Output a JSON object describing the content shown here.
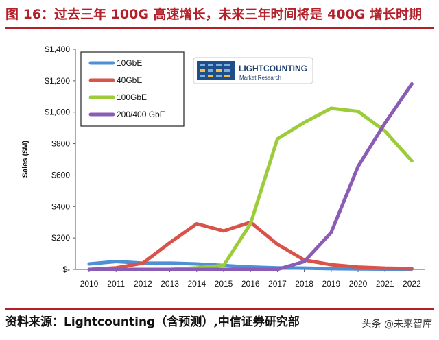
{
  "title": "图 16：过去三年 100G 高速增长，未来三年时间将是 400G 增长时期",
  "source": "资料来源：Lightcounting（含预测）,中信证券研究部",
  "watermark": "头条 @未来智库",
  "logo": {
    "name": "LIGHTCOUNTING",
    "subtitle": "Market Research"
  },
  "colors": {
    "accent": "#b3202a",
    "10GbE": "#4f8fd6",
    "40GbE": "#d9534a",
    "100GbE": "#9ccc3a",
    "200/400 GbE": "#8a5cb5"
  },
  "chart_data": {
    "type": "line",
    "ylabel": "Sales ($M)",
    "ylim": [
      0,
      1400
    ],
    "yticks": [
      0,
      200,
      400,
      600,
      800,
      1000,
      1200,
      1400
    ],
    "ytick_labels": [
      "$-",
      "$200",
      "$400",
      "$600",
      "$800",
      "$1,000",
      "$1,200",
      "$1,400"
    ],
    "categories": [
      "2010",
      "2011",
      "2012",
      "2013",
      "2014",
      "2015",
      "2016",
      "2017",
      "2018",
      "2019",
      "2020",
      "2021",
      "2022"
    ],
    "legend_position": "top-left",
    "grid": false,
    "series": [
      {
        "name": "10GbE",
        "color": "#4f8fd6",
        "values": [
          35,
          50,
          40,
          40,
          35,
          25,
          15,
          10,
          8,
          5,
          3,
          2,
          2
        ]
      },
      {
        "name": "40GbE",
        "color": "#d9534a",
        "values": [
          0,
          10,
          40,
          170,
          290,
          245,
          300,
          160,
          60,
          30,
          15,
          8,
          5
        ]
      },
      {
        "name": "100GbE",
        "color": "#9ccc3a",
        "values": [
          0,
          0,
          0,
          0,
          10,
          25,
          290,
          830,
          935,
          1025,
          1005,
          880,
          690
        ]
      },
      {
        "name": "200/400 GbE",
        "color": "#8a5cb5",
        "values": [
          0,
          0,
          0,
          0,
          0,
          0,
          0,
          0,
          50,
          235,
          655,
          930,
          1180
        ]
      }
    ]
  }
}
